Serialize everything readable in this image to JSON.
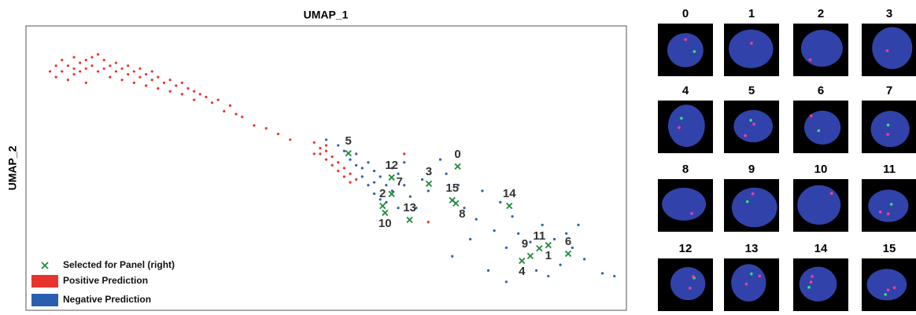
{
  "chart_data": {
    "type": "scatter",
    "xlabel": "UMAP_1",
    "ylabel": "UMAP_2",
    "xlim": [
      0,
      100
    ],
    "ylim": [
      0,
      100
    ],
    "grid": false,
    "legend": "lower left",
    "series": [
      {
        "name": "Positive Prediction",
        "color": "#e8342f",
        "marker": "dot",
        "x": [
          4,
          5,
          5,
          6,
          6,
          7,
          7,
          8,
          8,
          8,
          9,
          9,
          10,
          10,
          10,
          11,
          11,
          12,
          12,
          13,
          13,
          14,
          14,
          15,
          15,
          16,
          16,
          17,
          17,
          18,
          18,
          19,
          19,
          20,
          20,
          21,
          21,
          22,
          22,
          23,
          24,
          24,
          25,
          26,
          26,
          27,
          28,
          28,
          29,
          30,
          31,
          32,
          33,
          34,
          35,
          36,
          38,
          40,
          42,
          44,
          48,
          49,
          49,
          50,
          50,
          51,
          51,
          52,
          52,
          53,
          53,
          54,
          54,
          55,
          50,
          48,
          63,
          67
        ],
        "values": [
          84,
          86,
          82,
          88,
          84,
          86,
          81,
          89,
          85,
          83,
          87,
          84,
          88,
          85,
          80,
          89,
          86,
          90,
          84,
          88,
          85,
          86,
          82,
          87,
          84,
          85,
          81,
          86,
          83,
          84,
          80,
          85,
          82,
          83,
          79,
          84,
          81,
          82,
          78,
          80,
          81,
          77,
          79,
          80,
          76,
          78,
          77,
          74,
          76,
          75,
          73,
          74,
          70,
          72,
          69,
          68,
          65,
          64,
          62,
          60,
          59,
          57,
          55,
          56,
          53,
          54,
          51,
          52,
          49,
          50,
          47,
          48,
          45,
          46,
          58,
          55,
          55,
          31
        ]
      },
      {
        "name": "Negative Prediction",
        "color": "#2a5fb0",
        "marker": "dot",
        "x": [
          50,
          52,
          53,
          54,
          55,
          55,
          56,
          56,
          57,
          57,
          58,
          58,
          58,
          59,
          59,
          60,
          60,
          61,
          61,
          62,
          62,
          63,
          63,
          64,
          65,
          66,
          67,
          69,
          70,
          72,
          73,
          75,
          76,
          78,
          79,
          81,
          82,
          80,
          71,
          74,
          84,
          86,
          88,
          90,
          91,
          93,
          89,
          85,
          80,
          77,
          96,
          98,
          92,
          87
        ],
        "values": [
          60,
          58,
          56,
          53,
          51,
          55,
          50,
          47,
          52,
          44,
          49,
          45,
          41,
          47,
          39,
          44,
          38,
          50,
          42,
          48,
          36,
          52,
          44,
          40,
          36,
          46,
          42,
          53,
          48,
          44,
          36,
          32,
          42,
          28,
          38,
          33,
          27,
          22,
          19,
          25,
          24,
          30,
          25,
          27,
          22,
          18,
          16,
          14,
          10,
          14,
          13,
          12,
          30,
          12
        ]
      },
      {
        "name": "Selected for Panel (right)",
        "color": "#1e8a3a",
        "marker": "x",
        "x": [
          71.9,
          87.0,
          59.4,
          67.1,
          82.6,
          53.7,
          90.3,
          60.9,
          71.6,
          84.0,
          59.8,
          85.5,
          60.9,
          63.9,
          80.5,
          71.0
        ],
        "values": [
          50.6,
          22.9,
          36.7,
          44.5,
          17.4,
          55.2,
          19.9,
          40.9,
          37.6,
          19.1,
          34.3,
          21.8,
          46.7,
          31.8,
          36.7,
          38.7
        ],
        "labels": [
          "0",
          "1",
          "2",
          "3",
          "4",
          "5",
          "6",
          "7",
          "8",
          "9",
          "10",
          "11",
          "12",
          "13",
          "14",
          "15"
        ]
      }
    ]
  },
  "panel": {
    "labels": [
      "0",
      "1",
      "2",
      "3",
      "4",
      "5",
      "6",
      "7",
      "8",
      "9",
      "10",
      "11",
      "12",
      "13",
      "14",
      "15"
    ]
  }
}
